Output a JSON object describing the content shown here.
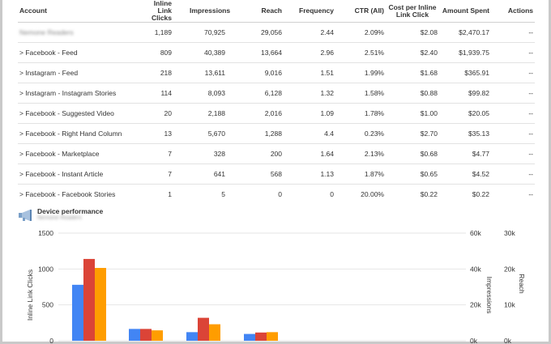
{
  "table": {
    "headers": {
      "account": "Account",
      "clicks": "Inline Link Clicks",
      "impressions": "Impressions",
      "reach": "Reach",
      "frequency": "Frequency",
      "ctr": "CTR (All)",
      "cpc": "Cost per Inline Link Click",
      "spent": "Amount Spent",
      "actions": "Actions"
    },
    "rows": [
      {
        "account": "Nemone Readers",
        "clicks": "1,189",
        "impressions": "70,925",
        "reach": "29,056",
        "frequency": "2.44",
        "ctr": "2.09%",
        "cpc": "$2.08",
        "spent": "$2,470.17",
        "actions": "--"
      },
      {
        "account": "> Facebook - Feed",
        "clicks": "809",
        "impressions": "40,389",
        "reach": "13,664",
        "frequency": "2.96",
        "ctr": "2.51%",
        "cpc": "$2.40",
        "spent": "$1,939.75",
        "actions": "--"
      },
      {
        "account": "> Instagram - Feed",
        "clicks": "218",
        "impressions": "13,611",
        "reach": "9,016",
        "frequency": "1.51",
        "ctr": "1.99%",
        "cpc": "$1.68",
        "spent": "$365.91",
        "actions": "--"
      },
      {
        "account": "> Instagram - Instagram Stories",
        "clicks": "114",
        "impressions": "8,093",
        "reach": "6,128",
        "frequency": "1.32",
        "ctr": "1.58%",
        "cpc": "$0.88",
        "spent": "$99.82",
        "actions": "--"
      },
      {
        "account": "> Facebook - Suggested Video",
        "clicks": "20",
        "impressions": "2,188",
        "reach": "2,016",
        "frequency": "1.09",
        "ctr": "1.78%",
        "cpc": "$1.00",
        "spent": "$20.05",
        "actions": "--"
      },
      {
        "account": "> Facebook - Right Hand Column",
        "clicks": "13",
        "impressions": "5,670",
        "reach": "1,288",
        "frequency": "4.4",
        "ctr": "0.23%",
        "cpc": "$2.70",
        "spent": "$35.13",
        "actions": "--"
      },
      {
        "account": "> Facebook - Marketplace",
        "clicks": "7",
        "impressions": "328",
        "reach": "200",
        "frequency": "1.64",
        "ctr": "2.13%",
        "cpc": "$0.68",
        "spent": "$4.77",
        "actions": "--"
      },
      {
        "account": "> Facebook - Instant Article",
        "clicks": "7",
        "impressions": "641",
        "reach": "568",
        "frequency": "1.13",
        "ctr": "1.87%",
        "cpc": "$0.65",
        "spent": "$4.52",
        "actions": "--"
      },
      {
        "account": "> Facebook - Facebook Stories",
        "clicks": "1",
        "impressions": "5",
        "reach": "0",
        "frequency": "0",
        "ctr": "20.00%",
        "cpc": "$0.22",
        "spent": "$0.22",
        "actions": "--"
      }
    ]
  },
  "device_section": {
    "title": "Device performance",
    "subtitle": "Nemone Readers",
    "icon": "megaphone-icon"
  },
  "chart_data": {
    "type": "bar",
    "ylabel": "Inline Link Clicks",
    "ylabel_right1": "Impressions",
    "ylabel_right2": "Reach",
    "ylim": [
      0,
      1500
    ],
    "yticks": [
      "0",
      "500",
      "1000",
      "1500"
    ],
    "right1_ticks": [
      "0k",
      "20k",
      "40k",
      "60k"
    ],
    "right2_ticks": [
      "0k",
      "10k",
      "20k",
      "30k"
    ],
    "categories": [
      "",
      "",
      "",
      ""
    ],
    "series": [
      {
        "values": [
          780,
          165,
          120,
          95
        ],
        "color": "#4285f4"
      },
      {
        "values": [
          1140,
          165,
          320,
          115
        ],
        "color": "#db4437"
      },
      {
        "values": [
          1015,
          145,
          230,
          120
        ],
        "color": "#ff9d00"
      }
    ]
  }
}
